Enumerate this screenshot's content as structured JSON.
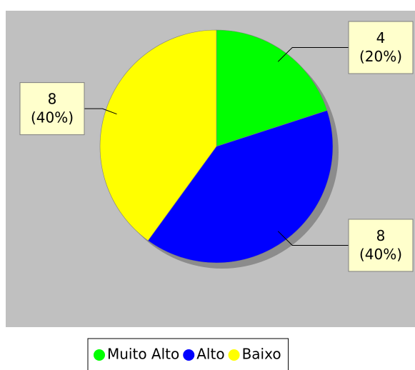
{
  "chart_data": {
    "type": "pie",
    "categories": [
      "Muito Alto",
      "Alto",
      "Baixo"
    ],
    "values": [
      4,
      8,
      8
    ],
    "value_labels": [
      [
        "4",
        "(20%)"
      ],
      [
        "8",
        "(40%)"
      ],
      [
        "8",
        "(40%)"
      ]
    ],
    "colors": [
      "#00ff00",
      "#0000ff",
      "#ffff00"
    ],
    "legend": "bottom"
  }
}
